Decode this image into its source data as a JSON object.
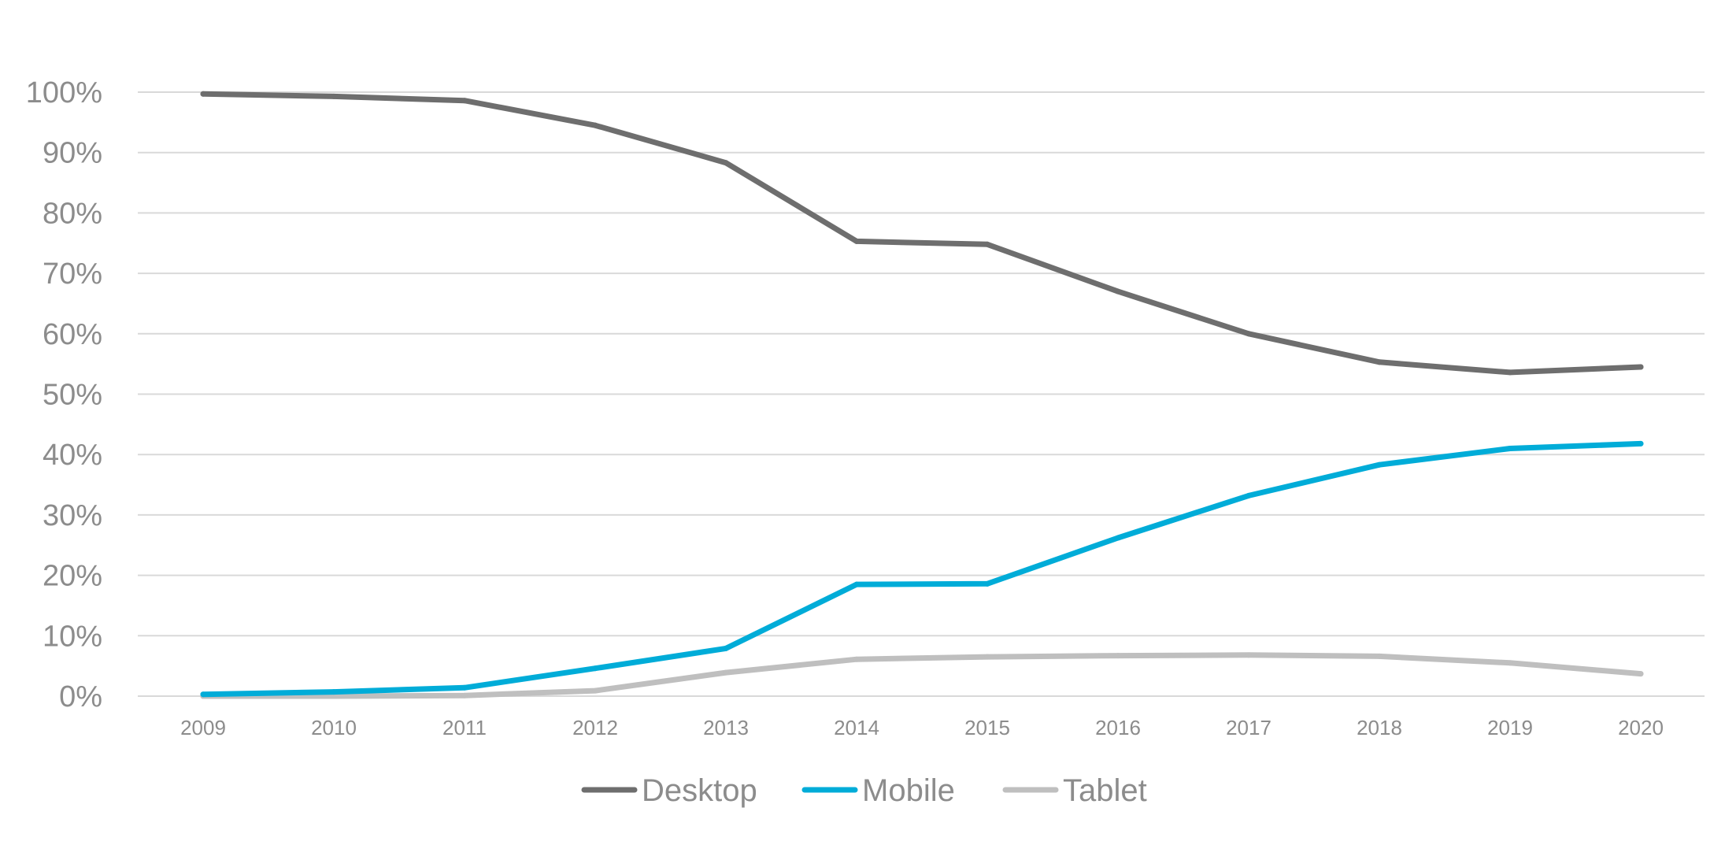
{
  "chart_data": {
    "type": "line",
    "title": "",
    "xlabel": "",
    "ylabel": "",
    "categories": [
      "2009",
      "2010",
      "2011",
      "2012",
      "2013",
      "2014",
      "2015",
      "2016",
      "2017",
      "2018",
      "2019",
      "2020"
    ],
    "y_ticks": [
      0,
      10,
      20,
      30,
      40,
      50,
      60,
      70,
      80,
      90,
      100
    ],
    "y_tick_labels": [
      "0%",
      "10%",
      "20%",
      "30%",
      "40%",
      "50%",
      "60%",
      "70%",
      "80%",
      "90%",
      "100%"
    ],
    "ylim": [
      0,
      100
    ],
    "grid": true,
    "legend_position": "bottom",
    "series": [
      {
        "name": "Desktop",
        "color": "#6e6e6e",
        "values": [
          99.7,
          99.3,
          98.6,
          94.5,
          88.3,
          75.3,
          74.8,
          67.0,
          60.0,
          55.3,
          53.6,
          54.5
        ]
      },
      {
        "name": "Mobile",
        "color": "#00acd8",
        "values": [
          0.3,
          0.7,
          1.4,
          4.6,
          7.9,
          18.5,
          18.6,
          26.2,
          33.2,
          38.3,
          41.0,
          41.8
        ]
      },
      {
        "name": "Tablet",
        "color": "#bfbfbf",
        "values": [
          0.0,
          0.0,
          0.1,
          0.9,
          3.9,
          6.1,
          6.5,
          6.7,
          6.8,
          6.6,
          5.5,
          3.7
        ]
      }
    ]
  }
}
